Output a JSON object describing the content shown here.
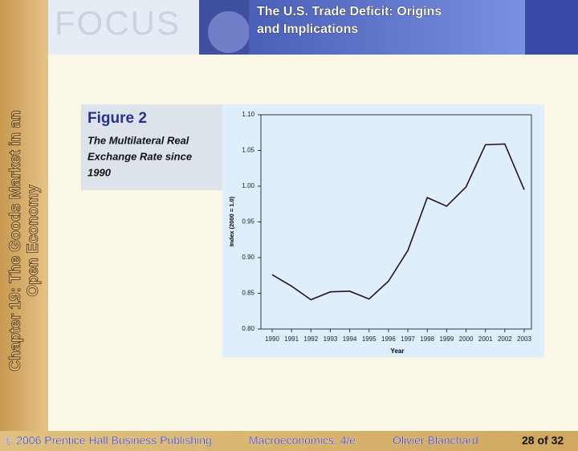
{
  "header": {
    "logo": "FOCUS",
    "title_lines": [
      "The U.S. Trade Deficit: Origins",
      "and Implications"
    ]
  },
  "sidebar": {
    "lines": [
      "Chapter 19: The Goods Market in an",
      "Open Economy"
    ]
  },
  "figure": {
    "label": "Figure 2",
    "caption_lines": [
      "The Multilateral Real",
      "Exchange Rate since",
      "1990"
    ]
  },
  "chart_data": {
    "type": "line",
    "categories": [
      "1990",
      "1991",
      "1992",
      "1993",
      "1994",
      "1995",
      "1996",
      "1997",
      "1998",
      "1999",
      "2000",
      "2001",
      "2002",
      "2003"
    ],
    "series": [
      {
        "name": "Multilateral real exchange rate",
        "color": "#2a1020",
        "values": [
          0.876,
          0.86,
          0.841,
          0.852,
          0.853,
          0.842,
          0.867,
          0.91,
          0.984,
          0.972,
          0.999,
          1.058,
          1.059,
          0.995
        ]
      }
    ],
    "xlabel": "Year",
    "ylabel": "Index (2000 = 1.0)",
    "ylim": [
      0.8,
      1.1
    ],
    "yticks": [
      {
        "value": 0.8,
        "label": "0.80"
      },
      {
        "value": 0.85,
        "label": "0.85"
      },
      {
        "value": 0.9,
        "label": "0.90"
      },
      {
        "value": 0.95,
        "label": "0.95"
      },
      {
        "value": 1.0,
        "label": "1.00"
      },
      {
        "value": 1.05,
        "label": "1.05"
      },
      {
        "value": 1.1,
        "label": "1.10"
      }
    ]
  },
  "footer": {
    "publisher": "© 2006 Prentice Hall Business Publishing",
    "book": "Macroeconomics, 4/e",
    "author": "Olivier Blanchard",
    "page": "28 of 32"
  }
}
